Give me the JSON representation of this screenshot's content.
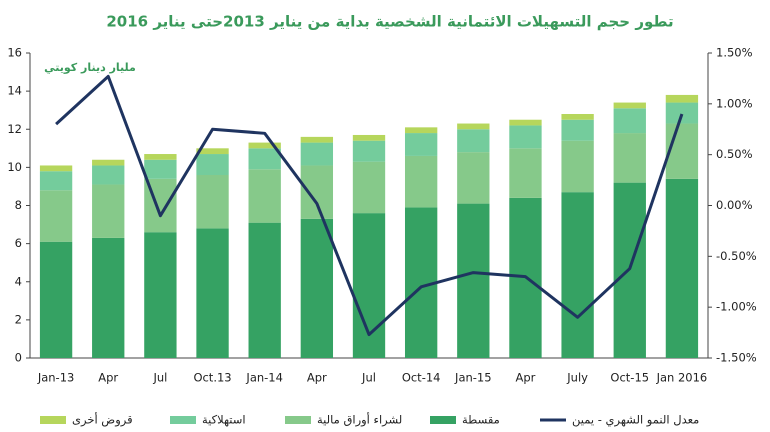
{
  "chart_data": {
    "type": "bar",
    "stacked": true,
    "title": "تطور حجم التسهيلات الائتمانية الشخصية بداية من يناير 2013حتى يناير 2016",
    "annotation": "مليار دينار كويتي",
    "categories": [
      "Jan-13",
      "Apr",
      "Jul",
      "Oct.13",
      "Jan-14",
      "Apr",
      "Jul",
      "Oct-14",
      "Jan-15",
      "Apr",
      "July",
      "Oct-15",
      "Jan 2016"
    ],
    "series": [
      {
        "name": "مقسطة",
        "color": "#35a263",
        "values": [
          6.1,
          6.3,
          6.6,
          6.8,
          7.1,
          7.3,
          7.6,
          7.9,
          8.1,
          8.4,
          8.7,
          9.2,
          9.4
        ]
      },
      {
        "name": "لشراء أوراق مالية",
        "color": "#86c98a",
        "values": [
          2.7,
          2.8,
          2.8,
          2.8,
          2.8,
          2.8,
          2.7,
          2.7,
          2.7,
          2.6,
          2.7,
          2.6,
          2.9
        ]
      },
      {
        "name": "استهلاكية",
        "color": "#74cc9c",
        "values": [
          1.0,
          1.0,
          1.0,
          1.1,
          1.1,
          1.2,
          1.1,
          1.2,
          1.2,
          1.2,
          1.1,
          1.3,
          1.1
        ]
      },
      {
        "name": "قروض أخرى",
        "color": "#b6d65c",
        "values": [
          0.3,
          0.3,
          0.3,
          0.3,
          0.3,
          0.3,
          0.3,
          0.3,
          0.3,
          0.3,
          0.3,
          0.3,
          0.4
        ]
      },
      {
        "name": "معدل النمو الشهري - يمين",
        "type": "line",
        "axis": "y2",
        "color": "#1f3460",
        "values": [
          0.8,
          1.27,
          -0.1,
          0.75,
          0.71,
          0.02,
          -1.27,
          -0.8,
          -0.66,
          -0.7,
          -1.1,
          -0.62,
          0.9
        ]
      }
    ],
    "ylim": [
      0,
      16
    ],
    "yticks": [
      0,
      2,
      4,
      6,
      8,
      10,
      12,
      14,
      16
    ],
    "y2lim": [
      -1.5,
      1.5
    ],
    "y2ticks": [
      {
        "value": -1.5,
        "label": "-1.50%"
      },
      {
        "value": -1.0,
        "label": "-1.00%"
      },
      {
        "value": -0.5,
        "label": "-0.50%"
      },
      {
        "value": 0,
        "label": "0.00%"
      },
      {
        "value": 0.5,
        "label": "0.50%"
      },
      {
        "value": 1.0,
        "label": "1.00%"
      },
      {
        "value": 1.5,
        "label": "1.50%"
      }
    ],
    "grid": false,
    "legend": "bottom"
  }
}
